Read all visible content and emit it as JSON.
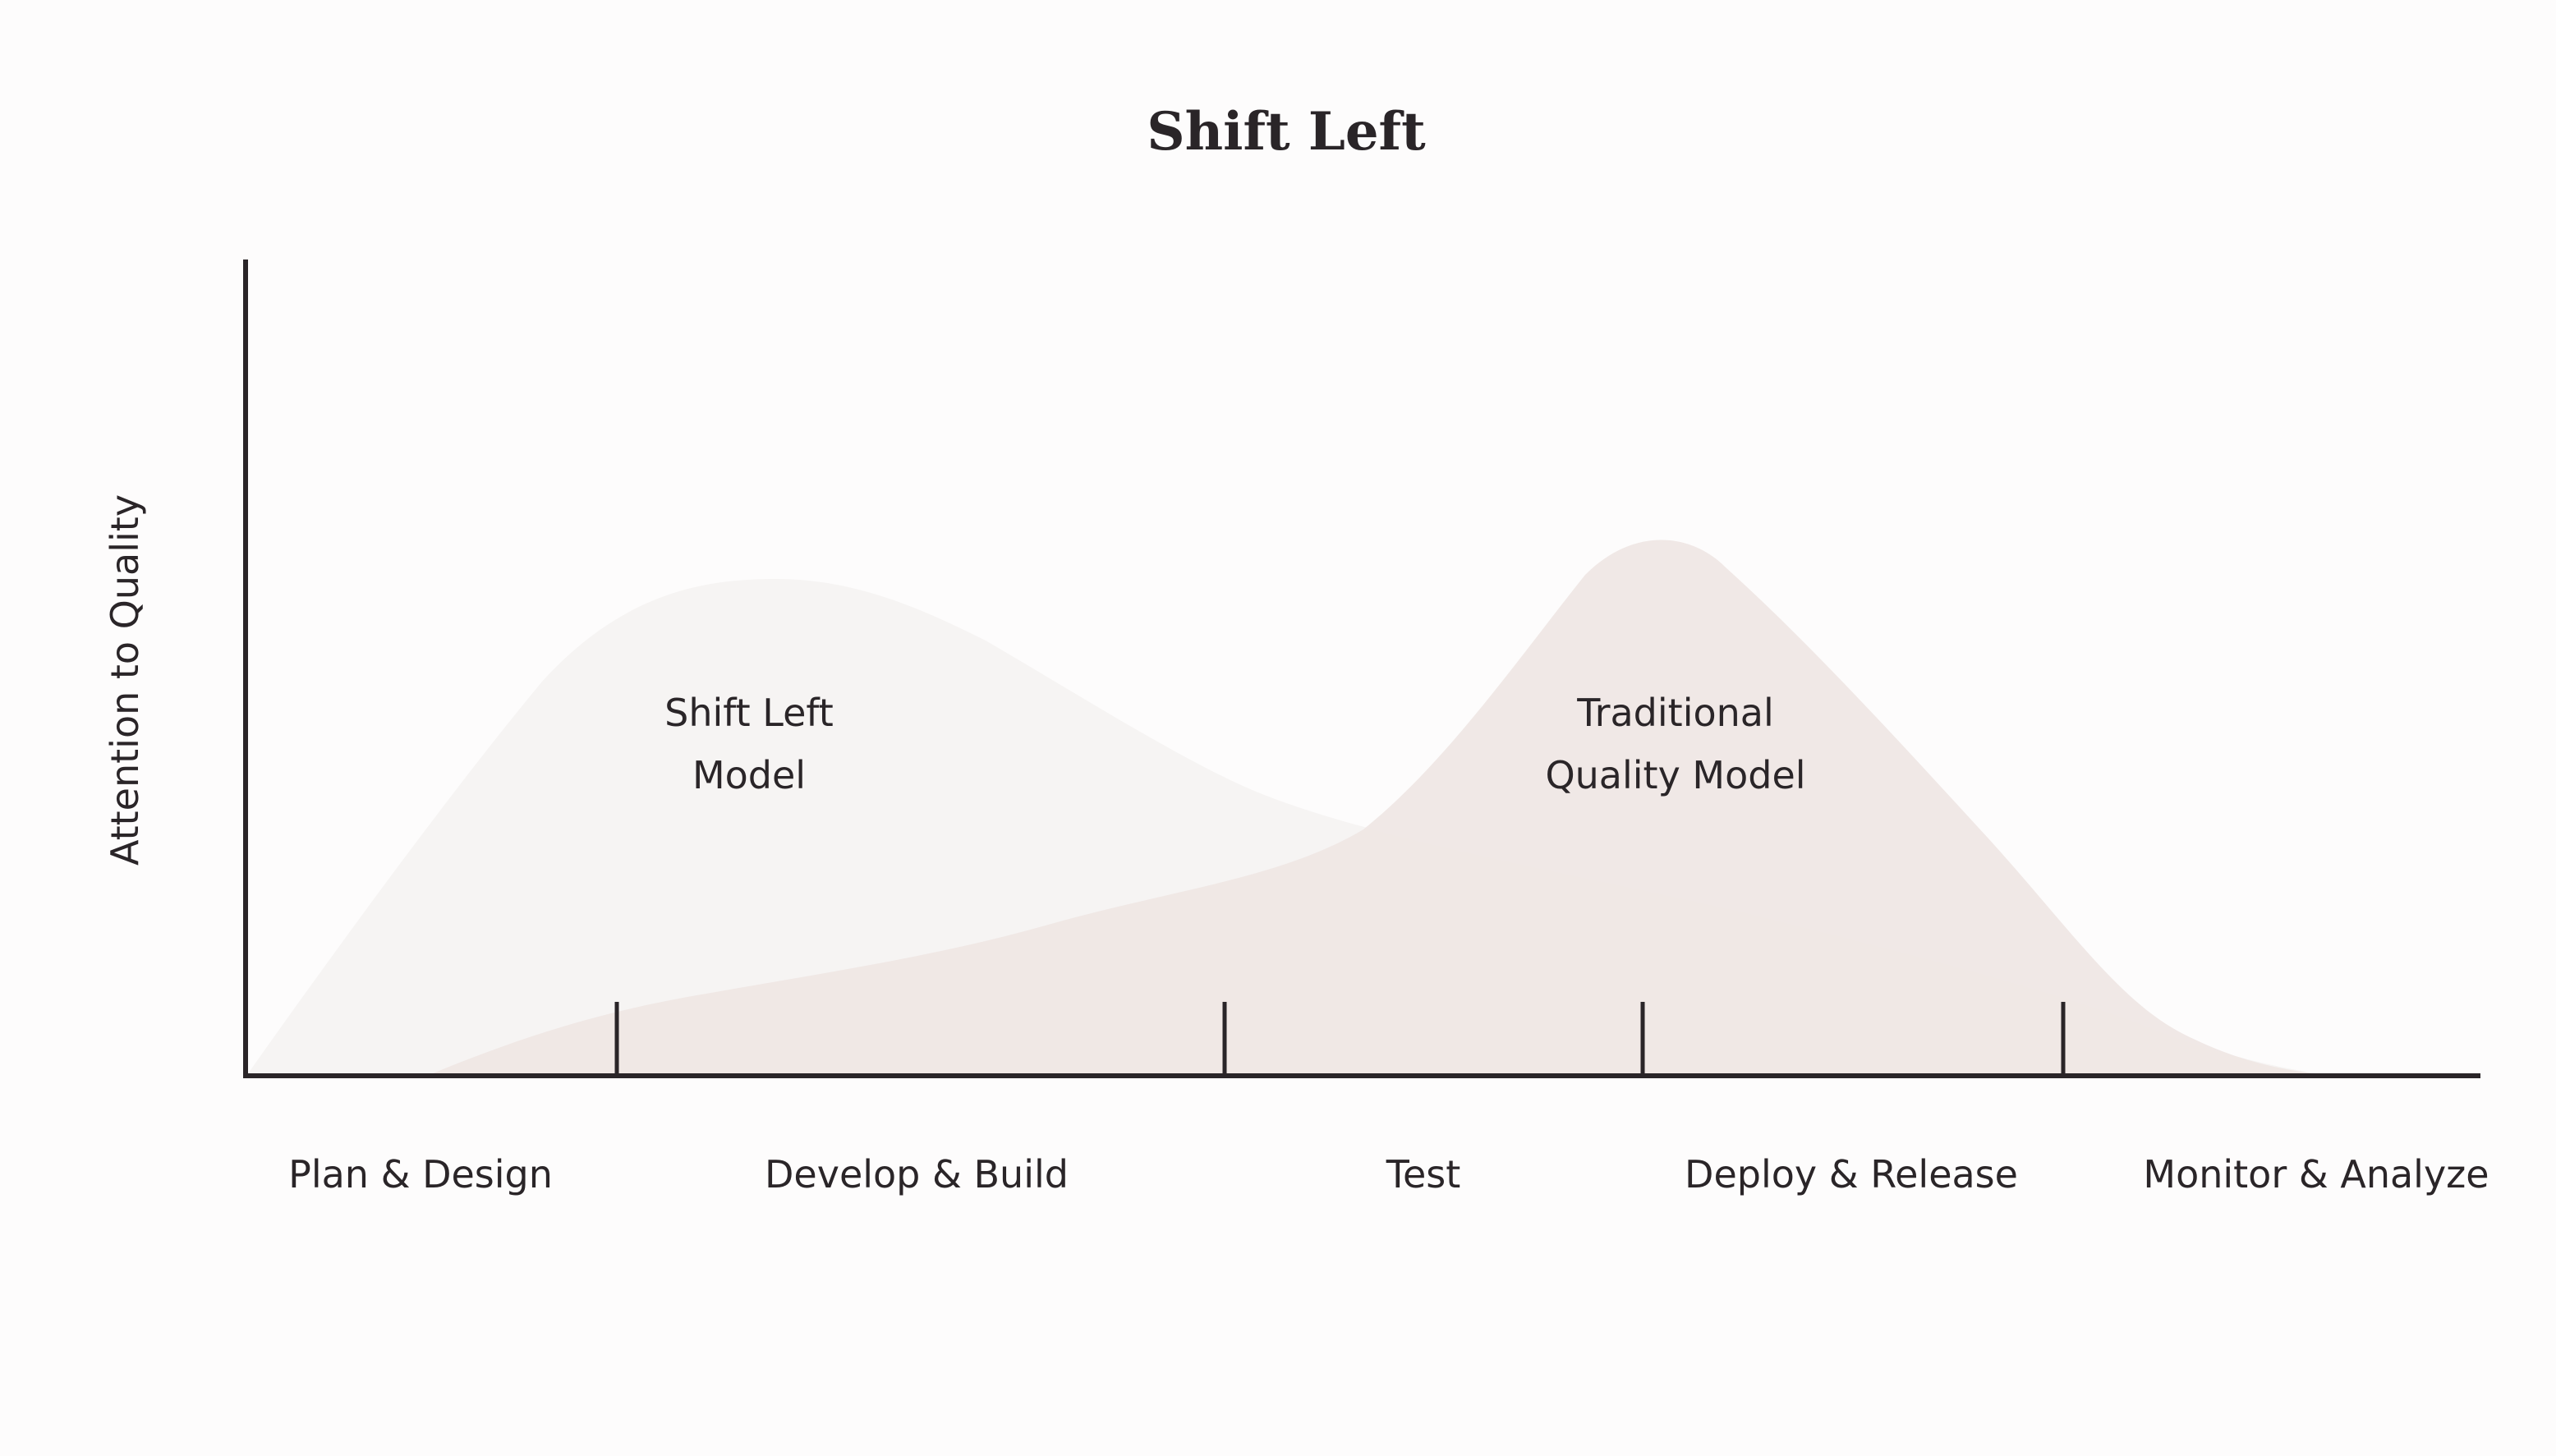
{
  "title": "Shift Left",
  "y_axis_label": "Attention to Quality",
  "phases": [
    "Plan & Design",
    "Develop & Build",
    "Test",
    "Deploy & Release",
    "Monitor & Analyze"
  ],
  "curves": {
    "shift_left": {
      "label_line1": "Shift Left",
      "label_line2": "Model",
      "color": "#f5f3f2"
    },
    "traditional": {
      "label_line1": "Traditional",
      "label_line2": "Quality Model",
      "color": "#efe6e4"
    }
  },
  "colors": {
    "axis": "#2a2528",
    "text": "#2a2528",
    "background": "#fdfcfc"
  }
}
